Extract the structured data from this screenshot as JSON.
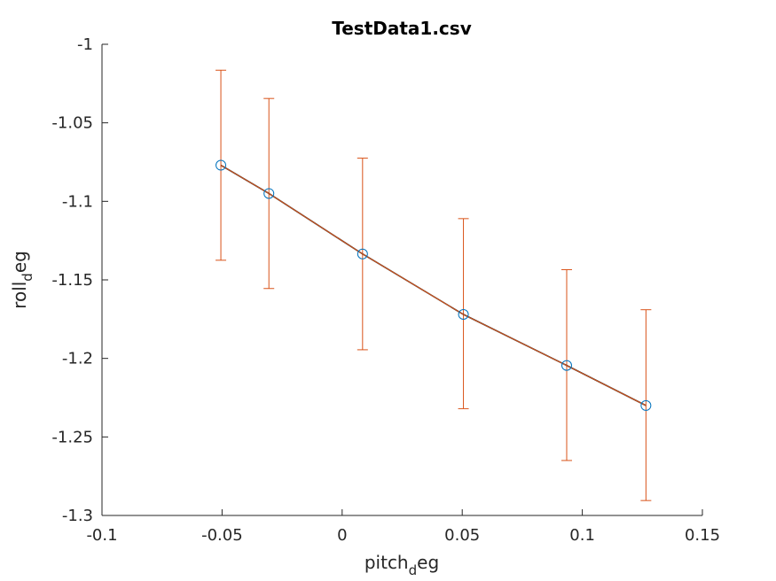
{
  "chart_data": {
    "type": "scatter",
    "title": "TestData1.csv",
    "xlabel": {
      "base": "pitch",
      "sub": "d",
      "rest": "eg"
    },
    "ylabel": {
      "base": "roll",
      "sub": "d",
      "rest": "eg"
    },
    "xlim": [
      -0.1,
      0.15
    ],
    "ylim": [
      -1.3,
      -1.0
    ],
    "xticks": [
      -0.1,
      -0.05,
      0,
      0.05,
      0.1,
      0.15
    ],
    "xtick_labels": [
      "-0.1",
      "-0.05",
      "0",
      "0.05",
      "0.1",
      "0.15"
    ],
    "yticks": [
      -1.0,
      -1.05,
      -1.1,
      -1.15,
      -1.2,
      -1.25,
      -1.3
    ],
    "ytick_labels": [
      "-1",
      "-1.05",
      "-1.1",
      "-1.15",
      "-1.2",
      "-1.25",
      "-1.3"
    ],
    "grid": false,
    "series": [
      {
        "marker": "circle",
        "line": true,
        "x": [
          -0.0505,
          -0.0305,
          0.0085,
          0.0505,
          0.0935,
          0.1265
        ],
        "y": [
          -1.077,
          -1.095,
          -1.1335,
          -1.172,
          -1.2045,
          -1.23
        ],
        "err_upper": [
          -1.0165,
          -1.0345,
          -1.0725,
          -1.111,
          -1.1435,
          -1.169
        ],
        "err_lower": [
          -1.1375,
          -1.1555,
          -1.1945,
          -1.232,
          -1.265,
          -1.2905
        ]
      }
    ],
    "colors": {
      "marker": "#0072bd",
      "line": "#d95319",
      "axis": "#262626"
    }
  }
}
